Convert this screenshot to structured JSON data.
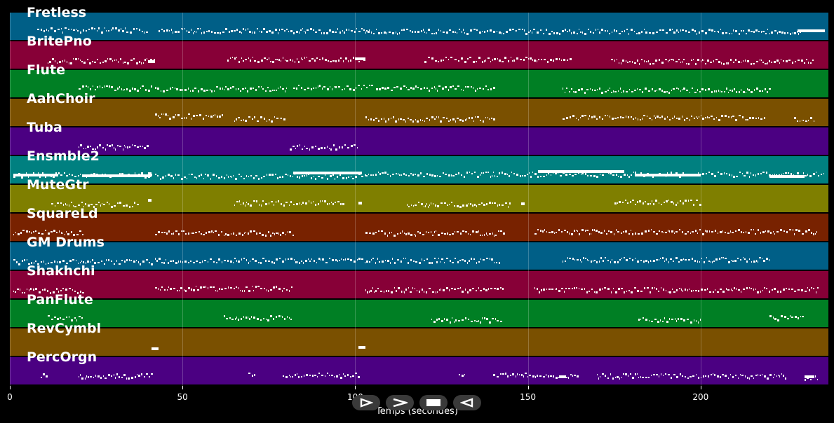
{
  "chart_data": {
    "type": "piano-roll",
    "xlabel": "Temps (secondes)",
    "xlim": [
      0,
      237
    ],
    "xticks": [
      0,
      50,
      100,
      150,
      200
    ],
    "tracks": [
      {
        "name": "Fretless",
        "color": "#005f87",
        "segments": [
          [
            8,
            40
          ],
          [
            43,
            104
          ],
          [
            103,
            230
          ]
        ],
        "long_notes": [
          [
            228,
            236
          ]
        ]
      },
      {
        "name": "BritePno",
        "color": "#870037",
        "segments": [
          [
            11,
            42
          ],
          [
            63,
            103
          ],
          [
            120,
            163
          ],
          [
            174,
            233
          ]
        ],
        "long_notes": [
          [
            40,
            42
          ],
          [
            100,
            103
          ]
        ]
      },
      {
        "name": "Flute",
        "color": "#007f24",
        "segments": [
          [
            20,
            41
          ],
          [
            42,
            80
          ],
          [
            82,
            105
          ],
          [
            106,
            140
          ],
          [
            160,
            220
          ]
        ],
        "long_notes": []
      },
      {
        "name": "AahChoir",
        "color": "#7a5000",
        "segments": [
          [
            42,
            62
          ],
          [
            65,
            80
          ],
          [
            103,
            140
          ],
          [
            160,
            219
          ],
          [
            227,
            233
          ]
        ],
        "long_notes": []
      },
      {
        "name": "Tuba",
        "color": "#4b0082",
        "segments": [
          [
            20,
            40
          ],
          [
            81,
            101
          ]
        ],
        "long_notes": []
      },
      {
        "name": "Ensmble2",
        "color": "#008080",
        "segments": [
          [
            1,
            41
          ],
          [
            42,
            103
          ],
          [
            103,
            236
          ]
        ],
        "long_notes": [
          [
            1,
            14
          ],
          [
            21,
            41
          ],
          [
            40,
            41
          ],
          [
            82,
            102
          ],
          [
            153,
            178
          ],
          [
            181,
            200
          ],
          [
            220,
            230
          ]
        ]
      },
      {
        "name": "MuteGtr",
        "color": "#7f7f00",
        "segments": [
          [
            12,
            37
          ],
          [
            65,
            97
          ],
          [
            115,
            145
          ],
          [
            175,
            200
          ]
        ],
        "long_notes": [
          [
            40,
            41
          ],
          [
            101,
            102
          ],
          [
            148,
            149
          ]
        ]
      },
      {
        "name": "SquareLd",
        "color": "#782200",
        "segments": [
          [
            1,
            21
          ],
          [
            42,
            82
          ],
          [
            103,
            143
          ],
          [
            152,
            234
          ]
        ],
        "long_notes": []
      },
      {
        "name": "GM Drums",
        "color": "#005f87",
        "segments": [
          [
            1,
            41
          ],
          [
            42,
            142
          ],
          [
            160,
            220
          ]
        ],
        "long_notes": []
      },
      {
        "name": "Shakhchi",
        "color": "#870037",
        "segments": [
          [
            1,
            21
          ],
          [
            42,
            82
          ],
          [
            103,
            143
          ],
          [
            152,
            234
          ]
        ],
        "long_notes": []
      },
      {
        "name": "PanFlute",
        "color": "#007f24",
        "segments": [
          [
            11,
            21
          ],
          [
            62,
            82
          ],
          [
            122,
            142
          ],
          [
            182,
            200
          ],
          [
            220,
            230
          ]
        ],
        "long_notes": []
      },
      {
        "name": "RevCymbl",
        "color": "#7a5000",
        "segments": [],
        "long_notes": [
          [
            41,
            43
          ],
          [
            101,
            103
          ]
        ]
      },
      {
        "name": "PercOrgn",
        "color": "#4b0082",
        "segments": [
          [
            9,
            11
          ],
          [
            20,
            41
          ],
          [
            69,
            71
          ],
          [
            79,
            101
          ],
          [
            130,
            132
          ],
          [
            140,
            165
          ],
          [
            170,
            225
          ],
          [
            230,
            234
          ]
        ],
        "long_notes": [
          [
            159,
            161
          ],
          [
            230,
            233
          ]
        ]
      }
    ]
  },
  "controls": [
    {
      "name": "play-forward-button",
      "icon": "play-triangle-icon"
    },
    {
      "name": "next-button",
      "icon": "chevron-right-icon"
    },
    {
      "name": "stop-button",
      "icon": "stop-square-icon"
    },
    {
      "name": "back-button",
      "icon": "play-reverse-icon"
    }
  ]
}
